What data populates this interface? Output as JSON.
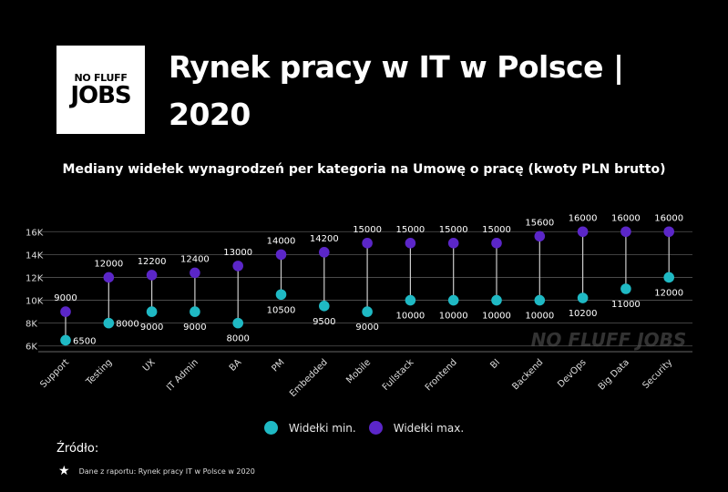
{
  "brand": {
    "logo_line1": "NO FLUFF",
    "logo_line2": "JOBS",
    "watermark": "NO FLUFF JOBS"
  },
  "header": {
    "title": "Rynek pracy w IT w Polsce | 2020",
    "subtitle": "Mediany widełek wynagrodzeń per kategoria na Umowę o pracę (kwoty PLN brutto)"
  },
  "colors": {
    "min": "#1fb9c4",
    "max": "#5b26c8",
    "stem": "#cccccc",
    "grid": "#555555"
  },
  "chart_data": {
    "type": "dumbbell",
    "ylim": [
      5500,
      16500
    ],
    "yticks": [
      6000,
      8000,
      10000,
      12000,
      14000,
      16000
    ],
    "ytick_labels": [
      "6K",
      "8K",
      "10K",
      "12K",
      "14K",
      "16K"
    ],
    "categories": [
      "Support",
      "Testing",
      "UX",
      "IT Admin",
      "BA",
      "PM",
      "Embedded",
      "Mobile",
      "Fullstack",
      "Frontend",
      "BI",
      "Backend",
      "DevOps",
      "Big Data",
      "Security"
    ],
    "series": [
      {
        "name": "Widełki min.",
        "values": [
          6500,
          8000,
          9000,
          9000,
          8000,
          10500,
          9500,
          9000,
          10000,
          10000,
          10000,
          10000,
          10200,
          11000,
          12000
        ]
      },
      {
        "name": "Widełki max.",
        "values": [
          9000,
          12000,
          12200,
          12400,
          13000,
          14000,
          14200,
          15000,
          15000,
          15000,
          15000,
          15600,
          16000,
          16000,
          16000
        ]
      }
    ]
  },
  "legend": {
    "min_label": "Widełki min.",
    "max_label": "Widełki max."
  },
  "source": {
    "label": "Źródło:",
    "note": "Dane z raportu: Rynek pracy IT w  Polsce w 2020"
  }
}
